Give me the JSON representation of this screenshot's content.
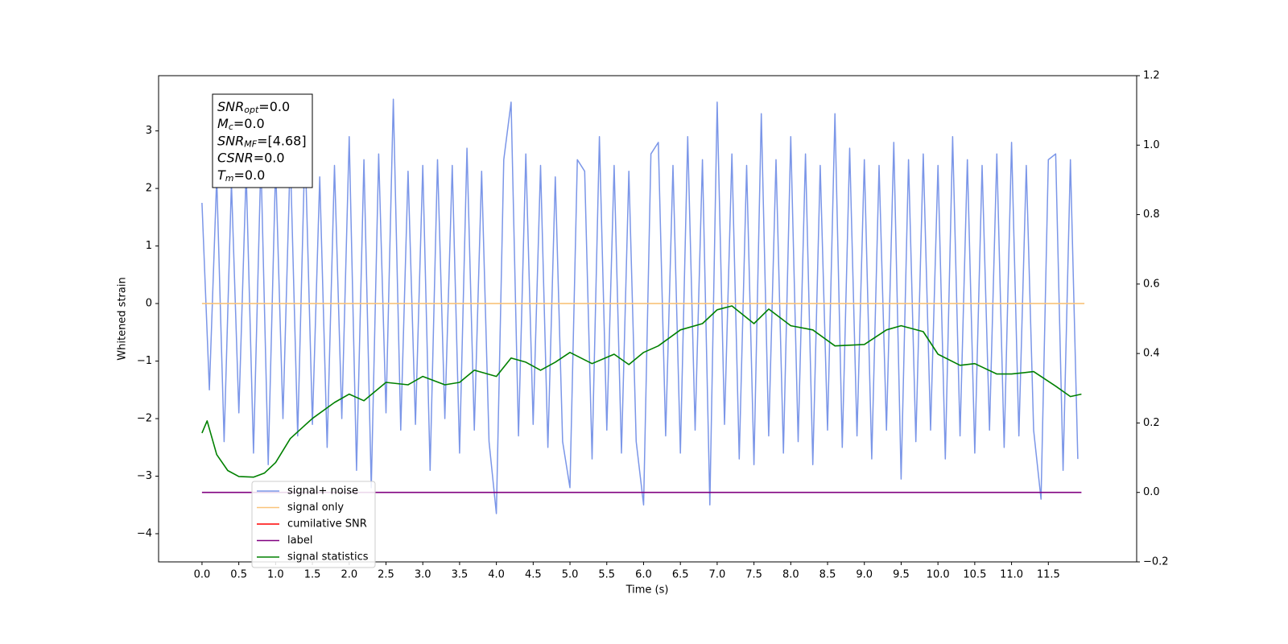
{
  "chart_data": {
    "type": "line",
    "xlabel": "Time (s)",
    "ylabel": "Whitened strain",
    "xlim": [
      -0.59,
      12.7
    ],
    "ylim": [
      -4.49,
      3.96
    ],
    "y2lim": [
      -0.2,
      1.2
    ],
    "xticks": [
      {
        "value": 0,
        "label": "0.0"
      },
      0.5,
      {
        "value": 1,
        "label": "1.0"
      },
      1.5,
      {
        "value": 2,
        "label": "2.0"
      },
      2.5,
      {
        "value": 3,
        "label": "3.0"
      },
      3.5,
      {
        "value": 4,
        "label": "4.0"
      },
      4.5,
      {
        "value": 5,
        "label": "5.0"
      },
      5.5,
      {
        "value": 6,
        "label": "6.0"
      },
      6.5,
      {
        "value": 7,
        "label": "7.0"
      },
      7.5,
      {
        "value": 8,
        "label": "8.0"
      },
      8.5,
      {
        "value": 9,
        "label": "9.0"
      },
      9.5,
      {
        "value": 10,
        "label": "10.0"
      },
      10.5,
      {
        "value": 11,
        "label": "11.0"
      },
      11.5
    ],
    "yticks": [
      {
        "value": -4,
        "label": "−4"
      },
      {
        "value": -3,
        "label": "−3"
      },
      {
        "value": -2,
        "label": "−2"
      },
      {
        "value": -1,
        "label": "−1"
      },
      0,
      1,
      2,
      3
    ],
    "y2ticks": [
      {
        "value": -0.2,
        "label": "−0.2"
      },
      {
        "value": 0,
        "label": "0.0"
      },
      0.2,
      0.4,
      0.6,
      0.8,
      {
        "value": 1,
        "label": "1.0"
      },
      1.2
    ],
    "legend_loc": "lower left",
    "annotation": [
      {
        "main": "SNR",
        "sub": "opt",
        "rest": "=0.0"
      },
      {
        "main": "M",
        "sub": "c",
        "rest": "=0.0"
      },
      {
        "main": "SNR",
        "sub": "MF",
        "rest": "=[4.68]"
      },
      {
        "main": "CSNR",
        "rest": "=0.0"
      },
      {
        "main": "T",
        "sub": "m",
        "rest": "=0.0"
      }
    ],
    "series": [
      {
        "name": "signal+ noise",
        "color": "#7b96e8",
        "x": [
          0.0,
          0.1,
          0.2,
          0.3,
          0.4,
          0.5,
          0.6,
          0.7,
          0.8,
          0.9,
          1.0,
          1.1,
          1.2,
          1.3,
          1.4,
          1.5,
          1.6,
          1.7,
          1.8,
          1.9,
          2.0,
          2.1,
          2.2,
          2.3,
          2.4,
          2.5,
          2.6,
          2.7,
          2.8,
          2.9,
          3.0,
          3.1,
          3.2,
          3.3,
          3.4,
          3.5,
          3.6,
          3.7,
          3.8,
          3.9,
          4.0,
          4.1,
          4.2,
          4.3,
          4.4,
          4.5,
          4.6,
          4.7,
          4.8,
          4.9,
          5.0,
          5.1,
          5.2,
          5.3,
          5.4,
          5.5,
          5.6,
          5.7,
          5.8,
          5.9,
          6.0,
          6.1,
          6.2,
          6.3,
          6.4,
          6.5,
          6.6,
          6.7,
          6.8,
          6.9,
          7.0,
          7.1,
          7.2,
          7.3,
          7.4,
          7.5,
          7.6,
          7.7,
          7.8,
          7.9,
          8.0,
          8.1,
          8.2,
          8.3,
          8.4,
          8.5,
          8.6,
          8.7,
          8.8,
          8.9,
          9.0,
          9.1,
          9.2,
          9.3,
          9.4,
          9.5,
          9.6,
          9.7,
          9.8,
          9.9,
          10.0,
          10.1,
          10.2,
          10.3,
          10.4,
          10.5,
          10.6,
          10.7,
          10.8,
          10.9,
          11.0,
          11.1,
          11.2,
          11.3,
          11.4,
          11.5,
          11.6,
          11.7,
          11.8,
          11.9
        ],
        "values": [
          1.75,
          -1.5,
          2.2,
          -2.4,
          2.1,
          -1.9,
          2.3,
          -2.6,
          2.5,
          -2.8,
          2.4,
          -2.0,
          2.6,
          -2.3,
          2.8,
          -2.1,
          2.2,
          -2.5,
          2.4,
          -2.0,
          2.9,
          -2.9,
          2.5,
          -3.2,
          2.6,
          -1.9,
          3.55,
          -2.2,
          2.3,
          -2.1,
          2.4,
          -2.9,
          2.5,
          -2.0,
          2.4,
          -2.6,
          2.7,
          -2.2,
          2.3,
          -2.4,
          -3.65,
          2.5,
          3.5,
          -2.3,
          2.6,
          -2.1,
          2.4,
          -2.5,
          2.2,
          -2.4,
          -3.2,
          2.5,
          2.3,
          -2.7,
          2.9,
          -2.2,
          2.4,
          -2.6,
          2.3,
          -2.4,
          -3.5,
          2.6,
          2.8,
          -2.3,
          2.4,
          -2.6,
          2.9,
          -2.2,
          2.5,
          -3.5,
          3.5,
          -2.1,
          2.6,
          -2.7,
          2.4,
          -2.8,
          3.3,
          -2.3,
          2.5,
          -2.6,
          2.9,
          -2.4,
          2.6,
          -2.8,
          2.4,
          -2.2,
          3.3,
          -2.5,
          2.7,
          -2.3,
          2.5,
          -2.7,
          2.4,
          -2.2,
          2.8,
          -3.05,
          2.5,
          -2.4,
          2.6,
          -2.2,
          2.4,
          -2.7,
          2.9,
          -2.3,
          2.5,
          -2.6,
          2.4,
          -2.2,
          2.6,
          -2.5,
          2.8,
          -2.3,
          2.4,
          -2.2,
          -3.4,
          2.5,
          2.6,
          -2.9,
          2.5,
          -2.7
        ]
      },
      {
        "name": "signal only",
        "color": "#f9c37a",
        "x": [
          0.0,
          11.99
        ],
        "values": [
          0,
          0
        ]
      },
      {
        "name": "cumilative SNR",
        "color": "#ff0000",
        "x": [],
        "values": []
      },
      {
        "name": "label",
        "color": "#800080",
        "axis": "y2",
        "x": [
          0.0,
          11.95
        ],
        "values": [
          0,
          0
        ]
      },
      {
        "name": "signal statistics",
        "color": "#008000",
        "axis": "y2",
        "x": [
          0.0,
          0.07,
          0.2,
          0.35,
          0.5,
          0.7,
          0.85,
          1.0,
          1.2,
          1.5,
          1.8,
          2.0,
          2.2,
          2.5,
          2.8,
          3.0,
          3.3,
          3.5,
          3.7,
          4.0,
          4.2,
          4.4,
          4.6,
          4.8,
          5.0,
          5.3,
          5.6,
          5.8,
          6.0,
          6.2,
          6.5,
          6.8,
          7.0,
          7.2,
          7.5,
          7.7,
          8.0,
          8.3,
          8.6,
          9.0,
          9.3,
          9.5,
          9.8,
          10.0,
          10.3,
          10.5,
          10.8,
          11.0,
          11.3,
          11.6,
          11.8,
          11.95
        ],
        "values": [
          0.171,
          0.206,
          0.109,
          0.063,
          0.046,
          0.044,
          0.056,
          0.086,
          0.155,
          0.213,
          0.259,
          0.283,
          0.264,
          0.317,
          0.31,
          0.334,
          0.31,
          0.317,
          0.352,
          0.334,
          0.387,
          0.375,
          0.352,
          0.375,
          0.403,
          0.371,
          0.398,
          0.368,
          0.403,
          0.422,
          0.468,
          0.486,
          0.526,
          0.537,
          0.486,
          0.528,
          0.48,
          0.468,
          0.422,
          0.426,
          0.468,
          0.48,
          0.463,
          0.398,
          0.366,
          0.371,
          0.341,
          0.341,
          0.348,
          0.306,
          0.276,
          0.283
        ]
      }
    ]
  }
}
